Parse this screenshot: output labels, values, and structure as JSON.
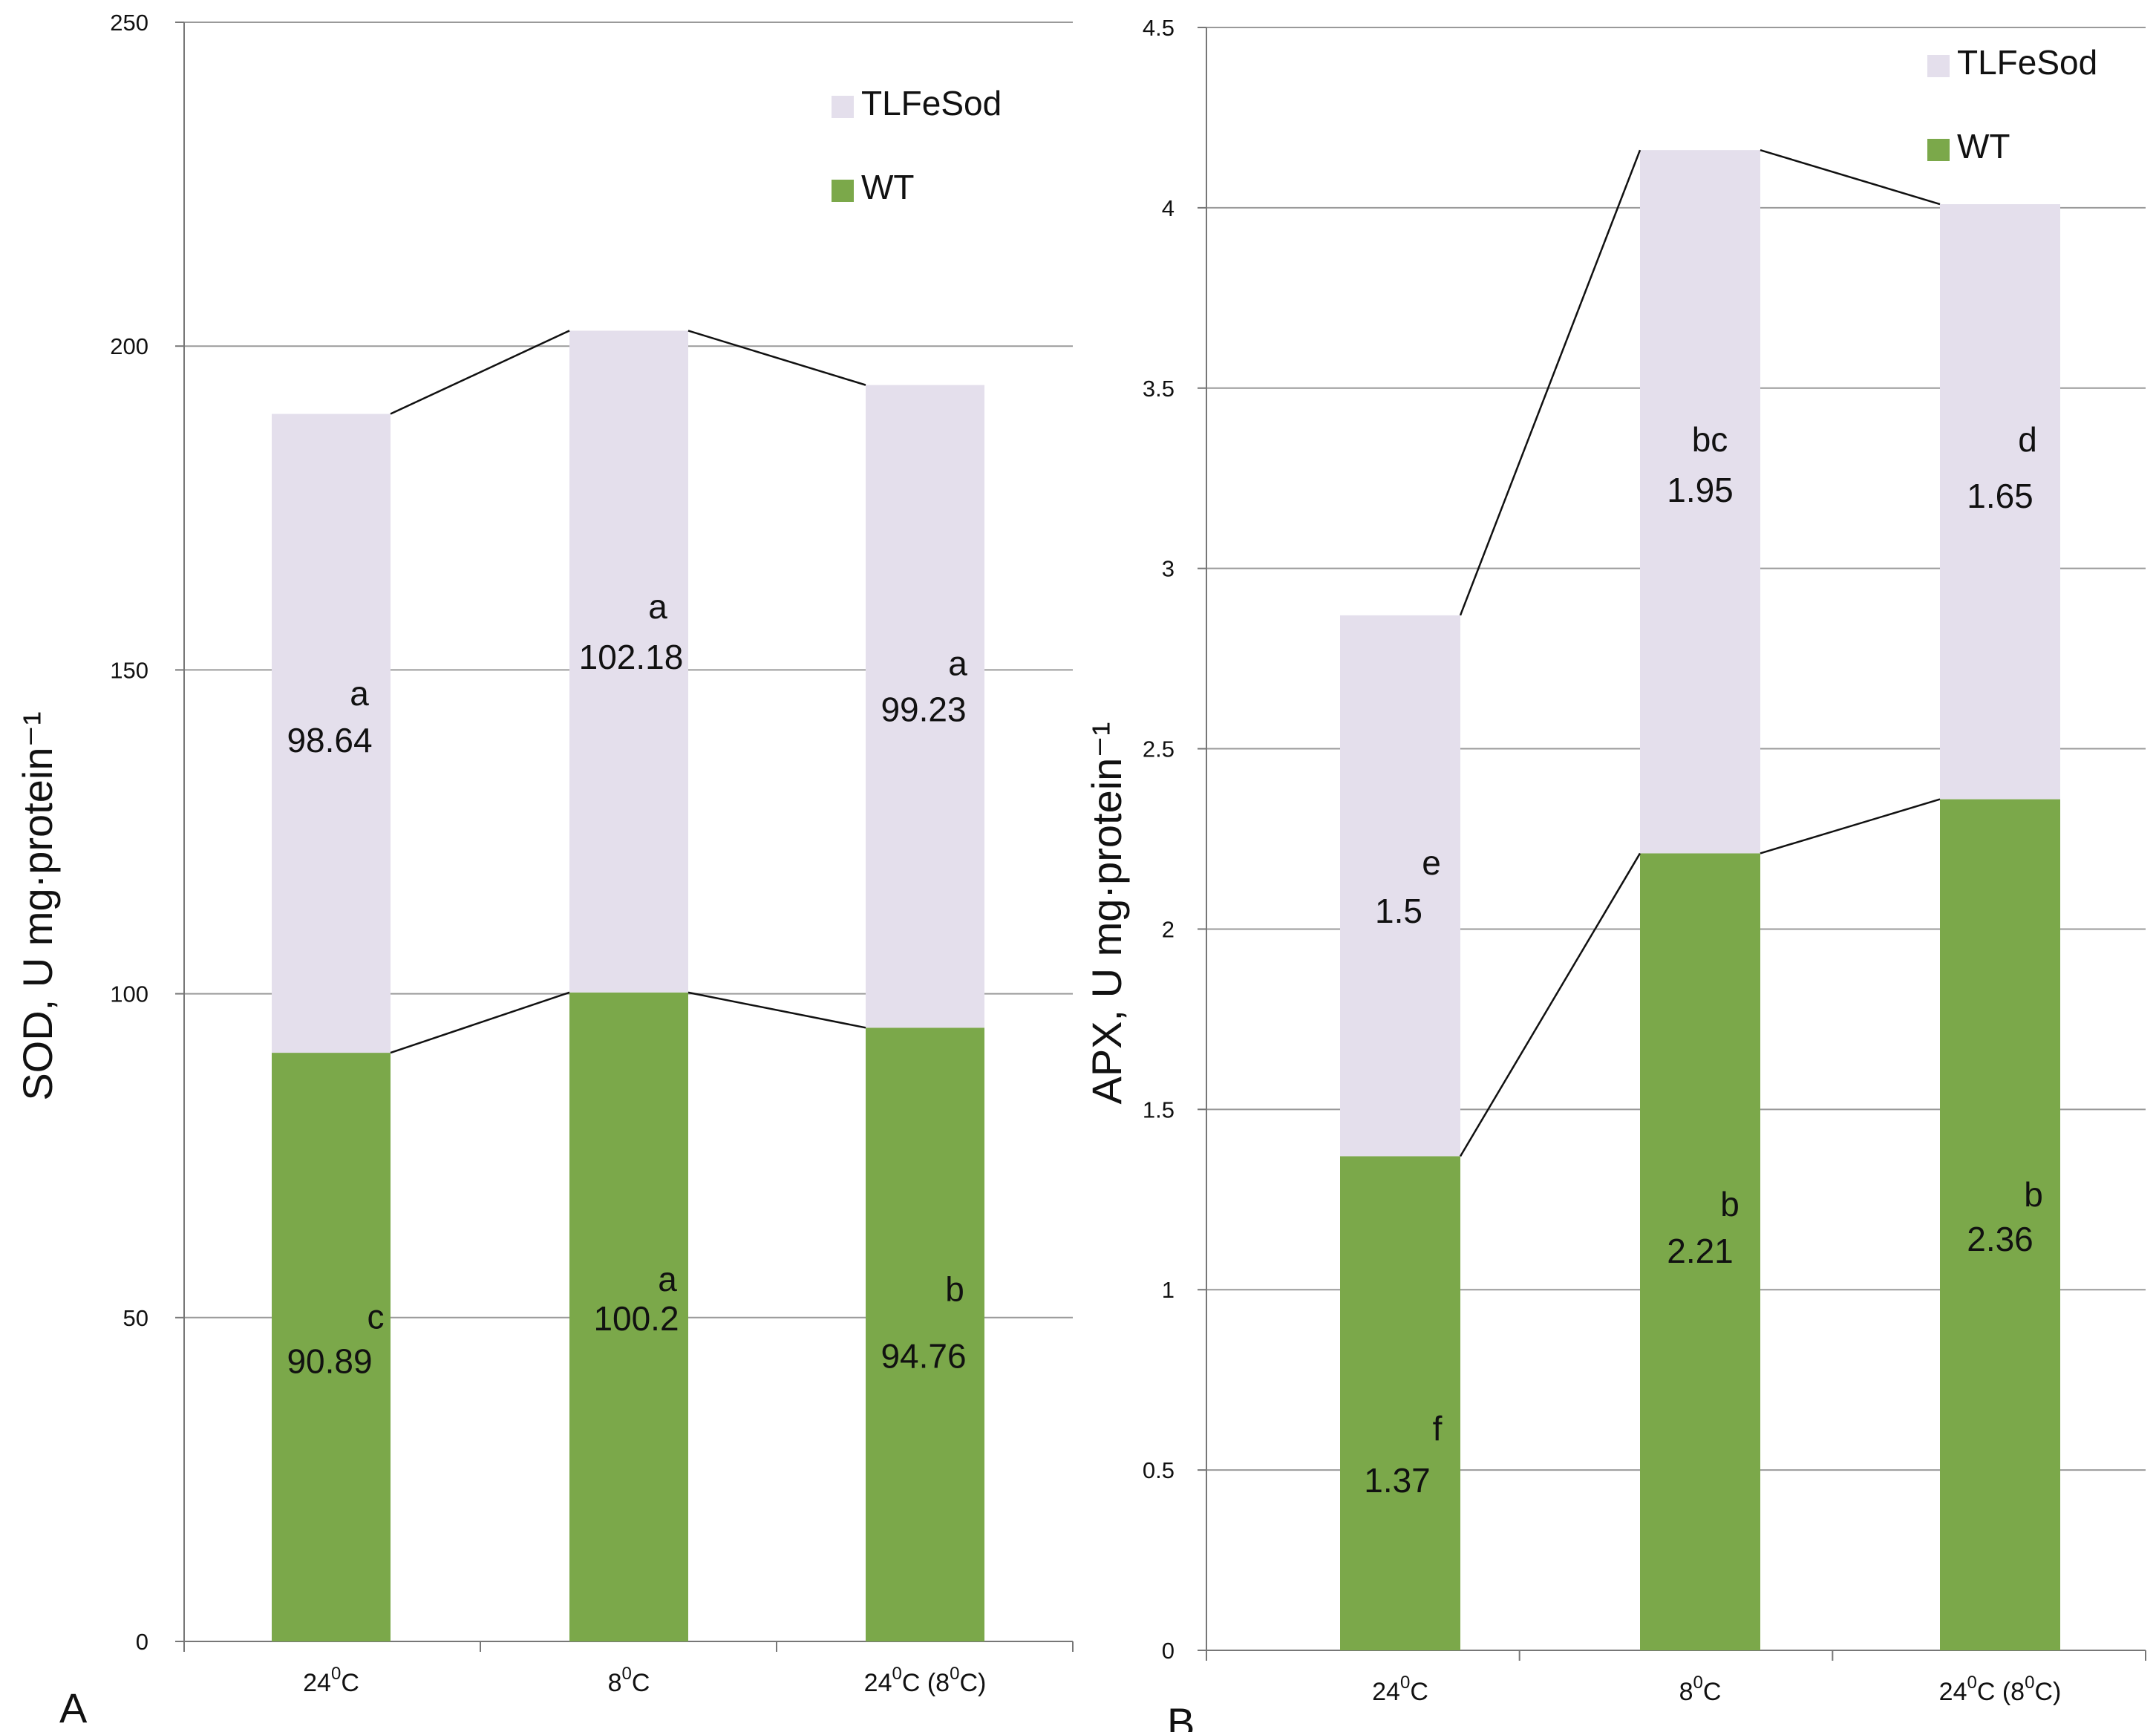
{
  "figure": "two-panel stacked bar chart",
  "colors": {
    "wt": "#7ba84a",
    "tlfesod": "#e4dfec",
    "grid": "#9a9a9a",
    "axis": "#777777",
    "connector": "#111111"
  },
  "chart_data": [
    {
      "panel": "A",
      "type": "bar",
      "stacked": true,
      "title": "",
      "ylabel": "SOD, U mg·protein⁻¹",
      "xlabel": "",
      "ylim": [
        0,
        250
      ],
      "yticks": [
        "0",
        "50",
        "100",
        "150",
        "200",
        "250"
      ],
      "categories": [
        {
          "base": "24",
          "sup": "0",
          "unit": "C",
          "suffix": "",
          "sup2": "",
          "unit2": "",
          "tail": ""
        },
        {
          "base": "8",
          "sup": "0",
          "unit": "C",
          "suffix": "",
          "sup2": "",
          "unit2": "",
          "tail": ""
        },
        {
          "base": "24",
          "sup": "0",
          "unit": "C",
          "suffix": " (8",
          "sup2": "0",
          "unit2": "C",
          "tail": ")"
        }
      ],
      "legend_position": "top-right",
      "series": [
        {
          "name": "WT",
          "color": "#7ba84a",
          "values": [
            90.89,
            100.2,
            94.76
          ],
          "labels": [
            "90.89",
            "100.2",
            "94.76"
          ],
          "letters": [
            "c",
            "a",
            "b"
          ]
        },
        {
          "name": "TLFeSod",
          "color": "#e4dfec",
          "values": [
            98.64,
            102.18,
            99.23
          ],
          "labels": [
            "98.64",
            "102.18",
            "99.23"
          ],
          "letters": [
            "a",
            "a",
            "a"
          ]
        }
      ],
      "series_lines": true,
      "grid": true
    },
    {
      "panel": "B",
      "type": "bar",
      "stacked": true,
      "title": "",
      "ylabel": "APX, U mg·protein⁻¹",
      "xlabel": "",
      "ylim": [
        0,
        4.5
      ],
      "yticks": [
        "0",
        "0.5",
        "1",
        "1.5",
        "2",
        "2.5",
        "3",
        "3.5",
        "4",
        "4.5"
      ],
      "categories": [
        {
          "base": "24",
          "sup": "0",
          "unit": "C",
          "suffix": "",
          "sup2": "",
          "unit2": "",
          "tail": ""
        },
        {
          "base": "8",
          "sup": "0",
          "unit": "C",
          "suffix": "",
          "sup2": "",
          "unit2": "",
          "tail": ""
        },
        {
          "base": "24",
          "sup": "0",
          "unit": "C",
          "suffix": " (8",
          "sup2": "0",
          "unit2": "C",
          "tail": ")"
        }
      ],
      "legend_position": "top-right",
      "series": [
        {
          "name": "WT",
          "color": "#7ba84a",
          "values": [
            1.37,
            2.21,
            2.36
          ],
          "labels": [
            "1.37",
            "2.21",
            "2.36"
          ],
          "letters": [
            "f",
            "b",
            "b"
          ]
        },
        {
          "name": "TLFeSod",
          "color": "#e4dfec",
          "values": [
            1.5,
            1.95,
            1.65
          ],
          "labels": [
            "1.5",
            "1.95",
            "1.65"
          ],
          "letters": [
            "e",
            "bc",
            "d"
          ]
        }
      ],
      "series_lines": true,
      "grid": true
    }
  ]
}
